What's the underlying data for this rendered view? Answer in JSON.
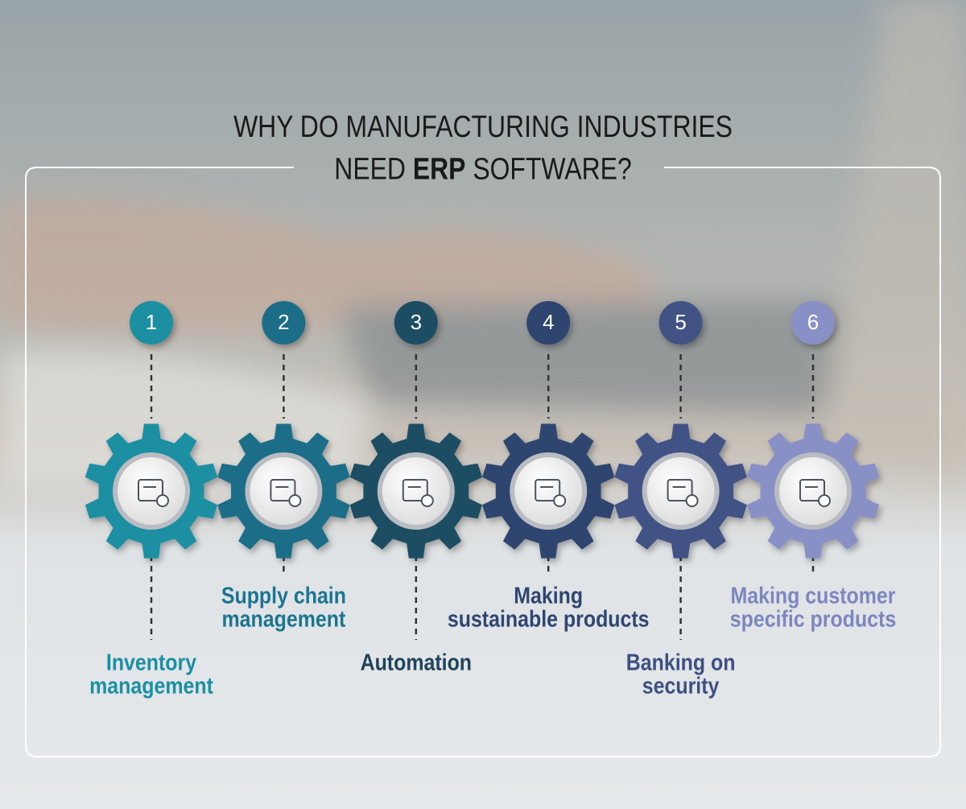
{
  "title": {
    "line1": "WHY DO MANUFACTURING INDUSTRIES",
    "line2": [
      "NEED ",
      "ERP",
      " SOFTWARE?"
    ]
  },
  "items": [
    {
      "number": "1",
      "label": [
        "Inventory",
        "management"
      ],
      "color": "#1b8fa3",
      "text_color": "#1b8fa3",
      "label_below": true
    },
    {
      "number": "2",
      "label": [
        "Supply chain",
        "management"
      ],
      "color": "#1b6e88",
      "text_color": "#1b7591",
      "label_below": false
    },
    {
      "number": "3",
      "label": [
        "Automation"
      ],
      "color": "#1d4d63",
      "text_color": "#22445a",
      "label_below": true
    },
    {
      "number": "4",
      "label": [
        "Making",
        "sustainable products"
      ],
      "color": "#2d456f",
      "text_color": "#2f4670",
      "label_below": false
    },
    {
      "number": "5",
      "label": [
        "Banking on",
        "security"
      ],
      "color": "#3f5384",
      "text_color": "#3d5080",
      "label_below": true
    },
    {
      "number": "6",
      "label": [
        "Making customer",
        "specific products"
      ],
      "color": "#8890c6",
      "text_color": "#7d86bf",
      "label_below": false
    }
  ]
}
